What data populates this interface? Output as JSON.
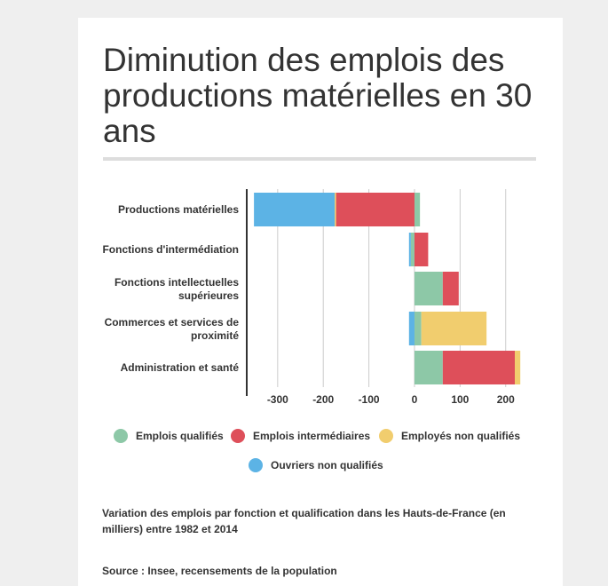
{
  "title": "Diminution des emplois des productions matérielles en 30 ans",
  "subtitle": "Variation des emplois par fonction et qualification dans les Hauts-de-France (en milliers) entre 1982 et 2014",
  "source": "Source : Insee, recensements de la population",
  "colors": {
    "emplois_qualifies": "#8dc8a7",
    "emplois_intermediaires": "#de4f5a",
    "employes_non_qualifies": "#f1cd6e",
    "ouvriers_non_qualifies": "#5cb3e5"
  },
  "chart_data": {
    "type": "bar",
    "orientation": "horizontal",
    "stacked": true,
    "categories": [
      "Productions matérielles",
      "Fonctions d'intermédiation",
      "Fonctions intellectuelles supérieures",
      "Commerces et services de proximité",
      "Administration et santé"
    ],
    "series": [
      {
        "name": "Emplois qualifiés",
        "color": "#8dc8a7",
        "values": [
          12,
          -8,
          62,
          15,
          62
        ]
      },
      {
        "name": "Emplois intermédiaires",
        "color": "#de4f5a",
        "values": [
          -172,
          30,
          35,
          0,
          158
        ]
      },
      {
        "name": "Employés non qualifiés",
        "color": "#f1cd6e",
        "values": [
          -3,
          0,
          0,
          143,
          12
        ]
      },
      {
        "name": "Ouvriers non qualifiés",
        "color": "#5cb3e5",
        "values": [
          -177,
          -4,
          0,
          -12,
          0
        ]
      }
    ],
    "xlim": [
      -360,
      255
    ],
    "xticks": [
      -300,
      -200,
      -100,
      0,
      100,
      200
    ],
    "xtick_labels": [
      "-300",
      "-200",
      "-100",
      "0",
      "100",
      "200"
    ],
    "grid": true,
    "legend_position": "bottom"
  }
}
